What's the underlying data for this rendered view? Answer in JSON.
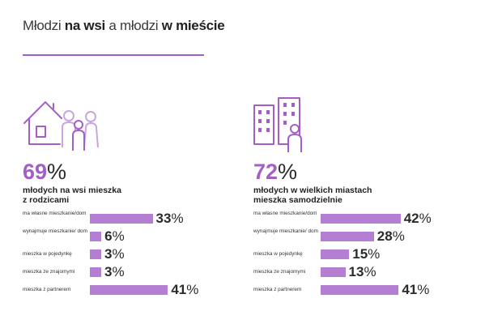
{
  "header": {
    "title_part1": "Młodzi",
    "title_part2": "na wsi",
    "title_part3": "a młodzi",
    "title_part4": "w mieście"
  },
  "colors": {
    "accent": "#a35fc7",
    "bar": "#b47fd3",
    "text": "#2b2b2b"
  },
  "left_panel": {
    "icon": "family-house-icon",
    "headline_value": "69",
    "headline_unit": "%",
    "caption_line1": "młodych na wsi mieszka",
    "caption_line2": "z rodzicami",
    "rows": [
      {
        "label": "ma własne mieszkanie/dom",
        "value": 33
      },
      {
        "label": "wynajmuje mieszkanie/ dom",
        "value": 6
      },
      {
        "label": "mieszka w pojedynkę",
        "value": 3
      },
      {
        "label": "mieszka ze znajomymi",
        "value": 3
      },
      {
        "label": "mieszka z partnerem",
        "value": 41
      }
    ]
  },
  "right_panel": {
    "icon": "city-person-icon",
    "headline_value": "72",
    "headline_unit": "%",
    "caption_line1": "młodych w wielkich miastach",
    "caption_line2": "mieszka samodzielnie",
    "rows": [
      {
        "label": "ma własne mieszkanie/dom",
        "value": 42
      },
      {
        "label": "wynajmuje mieszkanie/ dom",
        "value": 28
      },
      {
        "label": "mieszka w pojedynkę",
        "value": 15
      },
      {
        "label": "mieszka ze znajomymi",
        "value": 13
      },
      {
        "label": "mieszka z partnerem",
        "value": 41
      }
    ]
  },
  "value_unit": "%"
}
